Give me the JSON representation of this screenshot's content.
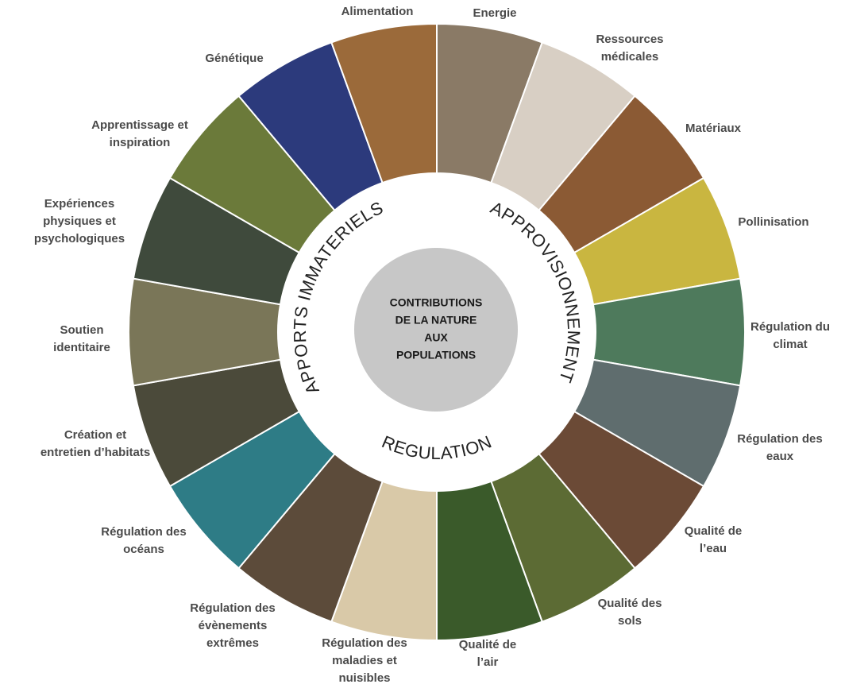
{
  "center": {
    "lines": [
      "CONTRIBUTIONS",
      "DE LA NATURE",
      "AUX",
      "POPULATIONS"
    ]
  },
  "categories": [
    "APPORTS IMMATERIELS",
    "APPROVISIONNEMENT",
    "REGULATION"
  ],
  "services": [
    {
      "lines": [
        "Energie"
      ]
    },
    {
      "lines": [
        "Ressources",
        "médicales"
      ]
    },
    {
      "lines": [
        "Matériaux"
      ]
    },
    {
      "lines": [
        "Pollinisation"
      ]
    },
    {
      "lines": [
        "Régulation du",
        "climat"
      ]
    },
    {
      "lines": [
        "Régulation des",
        "eaux"
      ]
    },
    {
      "lines": [
        "Qualité de",
        "l’eau"
      ]
    },
    {
      "lines": [
        "Qualité des",
        "sols"
      ]
    },
    {
      "lines": [
        "Qualité de",
        "l’air"
      ]
    },
    {
      "lines": [
        "Régulation des",
        "maladies et",
        "nuisibles"
      ]
    },
    {
      "lines": [
        "Régulation des",
        "évènements",
        "extrêmes"
      ]
    },
    {
      "lines": [
        "Régulation des",
        "océans"
      ]
    },
    {
      "lines": [
        "Création et",
        "entretien d’habitats"
      ]
    },
    {
      "lines": [
        "Soutien",
        "identitaire"
      ]
    },
    {
      "lines": [
        "Expériences",
        "physiques et",
        "psychologiques"
      ]
    },
    {
      "lines": [
        "Apprentissage et",
        "inspiration"
      ]
    },
    {
      "lines": [
        "Génétique"
      ]
    },
    {
      "lines": [
        "Alimentation"
      ]
    }
  ]
}
